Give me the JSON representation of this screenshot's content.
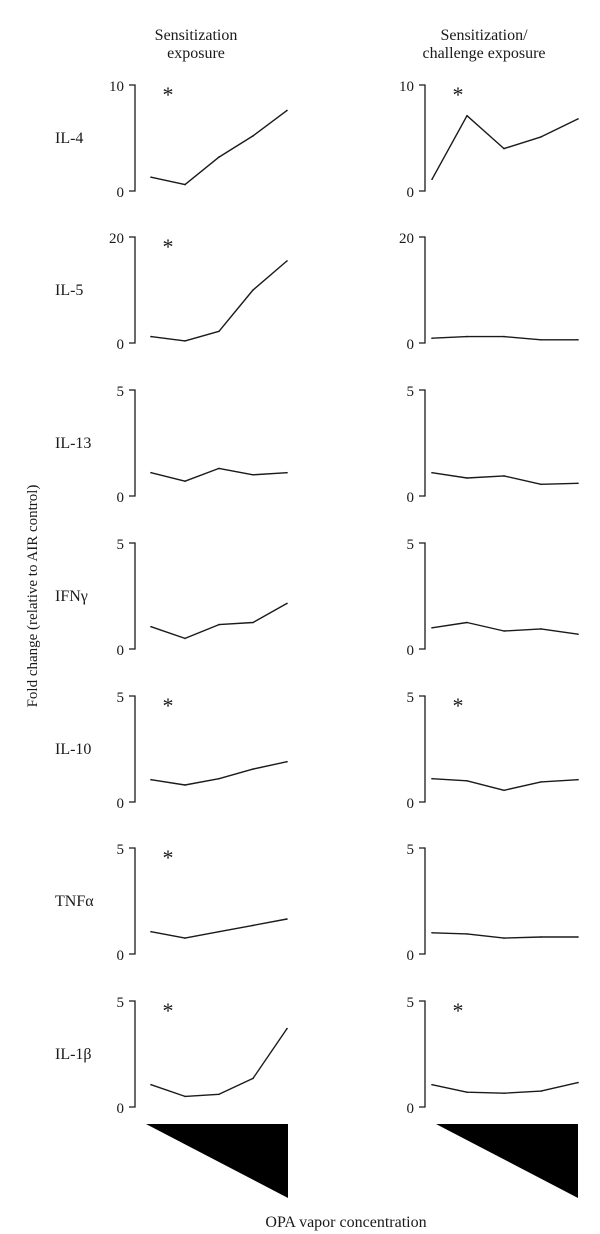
{
  "figure": {
    "left_column_title": [
      "Sensitization",
      "exposure"
    ],
    "right_column_title": [
      "Sensitization/",
      "challenge exposure"
    ],
    "y_axis_label": "Fold change (relative to AIR control)",
    "x_axis_label": "OPA vapor concentration"
  },
  "chart_data": [
    {
      "type": "line",
      "cytokine": "IL-4",
      "column": "Sensitization exposure",
      "ylim": [
        0,
        10
      ],
      "ticks": [
        "10",
        "0"
      ],
      "significance": "*",
      "x": [
        1,
        2,
        3,
        4,
        5
      ],
      "values": [
        1.3,
        0.6,
        3.2,
        5.2,
        7.6
      ]
    },
    {
      "type": "line",
      "cytokine": "IL-4",
      "column": "Sensitization/challenge exposure",
      "ylim": [
        0,
        10
      ],
      "ticks": [
        "10",
        "0"
      ],
      "significance": "*",
      "x": [
        1,
        2,
        3,
        4,
        5
      ],
      "values": [
        1.1,
        7.1,
        4.0,
        5.1,
        6.8
      ]
    },
    {
      "type": "line",
      "cytokine": "IL-5",
      "column": "Sensitization exposure",
      "ylim": [
        0,
        20
      ],
      "ticks": [
        "20",
        "0"
      ],
      "significance": "*",
      "x": [
        1,
        2,
        3,
        4,
        5
      ],
      "values": [
        1.2,
        0.4,
        2.2,
        10.0,
        15.5
      ]
    },
    {
      "type": "line",
      "cytokine": "IL-5",
      "column": "Sensitization/challenge exposure",
      "ylim": [
        0,
        20
      ],
      "ticks": [
        "20",
        "0"
      ],
      "significance": "",
      "x": [
        1,
        2,
        3,
        4,
        5
      ],
      "values": [
        0.9,
        1.2,
        1.2,
        0.6,
        0.6
      ]
    },
    {
      "type": "line",
      "cytokine": "IL-13",
      "column": "Sensitization exposure",
      "ylim": [
        0,
        5
      ],
      "ticks": [
        "5",
        "0"
      ],
      "significance": "",
      "x": [
        1,
        2,
        3,
        4,
        5
      ],
      "values": [
        1.1,
        0.7,
        1.3,
        1.0,
        1.1
      ]
    },
    {
      "type": "line",
      "cytokine": "IL-13",
      "column": "Sensitization/challenge exposure",
      "ylim": [
        0,
        5
      ],
      "ticks": [
        "5",
        "0"
      ],
      "significance": "",
      "x": [
        1,
        2,
        3,
        4,
        5
      ],
      "values": [
        1.1,
        0.85,
        0.95,
        0.55,
        0.6
      ]
    },
    {
      "type": "line",
      "cytokine": "IFNγ",
      "column": "Sensitization exposure",
      "ylim": [
        0,
        5
      ],
      "ticks": [
        "5",
        "0"
      ],
      "significance": "",
      "x": [
        1,
        2,
        3,
        4,
        5
      ],
      "values": [
        1.05,
        0.5,
        1.15,
        1.25,
        2.15
      ]
    },
    {
      "type": "line",
      "cytokine": "IFNγ",
      "column": "Sensitization/challenge exposure",
      "ylim": [
        0,
        5
      ],
      "ticks": [
        "5",
        "0"
      ],
      "significance": "",
      "x": [
        1,
        2,
        3,
        4,
        5
      ],
      "values": [
        1.0,
        1.25,
        0.85,
        0.95,
        0.7
      ]
    },
    {
      "type": "line",
      "cytokine": "IL-10",
      "column": "Sensitization exposure",
      "ylim": [
        0,
        5
      ],
      "ticks": [
        "5",
        "0"
      ],
      "significance": "*",
      "x": [
        1,
        2,
        3,
        4,
        5
      ],
      "values": [
        1.05,
        0.8,
        1.1,
        1.55,
        1.9
      ]
    },
    {
      "type": "line",
      "cytokine": "IL-10",
      "column": "Sensitization/challenge exposure",
      "ylim": [
        0,
        5
      ],
      "ticks": [
        "5",
        "0"
      ],
      "significance": "*",
      "x": [
        1,
        2,
        3,
        4,
        5
      ],
      "values": [
        1.1,
        1.0,
        0.55,
        0.95,
        1.05
      ]
    },
    {
      "type": "line",
      "cytokine": "TNFα",
      "column": "Sensitization exposure",
      "ylim": [
        0,
        5
      ],
      "ticks": [
        "5",
        "0"
      ],
      "significance": "*",
      "x": [
        1,
        2,
        3,
        4,
        5
      ],
      "values": [
        1.05,
        0.75,
        1.05,
        1.35,
        1.65
      ]
    },
    {
      "type": "line",
      "cytokine": "TNFα",
      "column": "Sensitization/challenge exposure",
      "ylim": [
        0,
        5
      ],
      "ticks": [
        "5",
        "0"
      ],
      "significance": "",
      "x": [
        1,
        2,
        3,
        4,
        5
      ],
      "values": [
        1.0,
        0.95,
        0.75,
        0.8,
        0.8
      ]
    },
    {
      "type": "line",
      "cytokine": "IL-1β",
      "column": "Sensitization exposure",
      "ylim": [
        0,
        5
      ],
      "ticks": [
        "5",
        "0"
      ],
      "significance": "*",
      "x": [
        1,
        2,
        3,
        4,
        5
      ],
      "values": [
        1.05,
        0.5,
        0.6,
        1.35,
        3.7
      ]
    },
    {
      "type": "line",
      "cytokine": "IL-1β",
      "column": "Sensitization/challenge exposure",
      "ylim": [
        0,
        5
      ],
      "ticks": [
        "5",
        "0"
      ],
      "significance": "*",
      "x": [
        1,
        2,
        3,
        4,
        5
      ],
      "values": [
        1.05,
        0.7,
        0.65,
        0.75,
        1.15
      ]
    }
  ]
}
